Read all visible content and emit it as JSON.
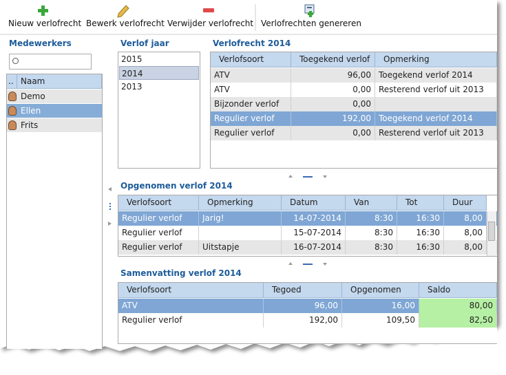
{
  "toolbar": {
    "buttons": [
      "Nieuw verlofrecht",
      "Bewerk verlofrecht",
      "Verwijder verlofrecht",
      "Verlofrechten genereren"
    ]
  },
  "employees": {
    "title": "Medewerkers",
    "columns": [
      "..",
      "Naam"
    ],
    "rows": [
      "Demo",
      "Ellen",
      "Frits"
    ],
    "selected": 1
  },
  "years": {
    "title": "Verlof jaar",
    "items": [
      "2015",
      "2014",
      "2013"
    ],
    "selected": 1
  },
  "entitlements": {
    "title": "Verlofrecht 2014",
    "columns": [
      "Verlofsoort",
      "Toegekend verlof",
      "Opmerking"
    ],
    "rows": [
      [
        "ATV",
        "96,00",
        "Toegekend verlof 2014"
      ],
      [
        "ATV",
        "0,00",
        "Resterend verlof uit 2013"
      ],
      [
        "Bijzonder verlof",
        "0,00",
        null
      ],
      [
        "Regulier verlof",
        "192,00",
        "Toegekend verlof 2014"
      ],
      [
        "Regulier verlof",
        "0,00",
        "Resterend verlof uit 2013"
      ]
    ],
    "selected": 3
  },
  "taken": {
    "title": "Opgenomen verlof 2014",
    "columns": [
      "Verlofsoort",
      "Opmerking",
      "Datum",
      "Van",
      "Tot",
      "Duur"
    ],
    "rows": [
      [
        "Regulier verlof",
        "Jarig!",
        "14-07-2014",
        "8:30",
        "16:30",
        "8,00"
      ],
      [
        "Regulier verlof",
        null,
        "15-07-2014",
        "8:30",
        "16:30",
        "8,00"
      ],
      [
        "Regulier verlof",
        "Uitstapje",
        "16-07-2014",
        "8:30",
        "16:30",
        "8,00"
      ]
    ],
    "selected": 0
  },
  "summary": {
    "title": "Samenvatting verlof 2014",
    "columns": [
      "Verlofsoort",
      "Tegoed",
      "Opgenomen",
      "Saldo"
    ],
    "rows": [
      [
        "ATV",
        "96,00",
        "16,00",
        "80,00"
      ],
      [
        "Regulier verlof",
        "192,00",
        "109,50",
        "82,50"
      ]
    ],
    "selected": 0
  }
}
